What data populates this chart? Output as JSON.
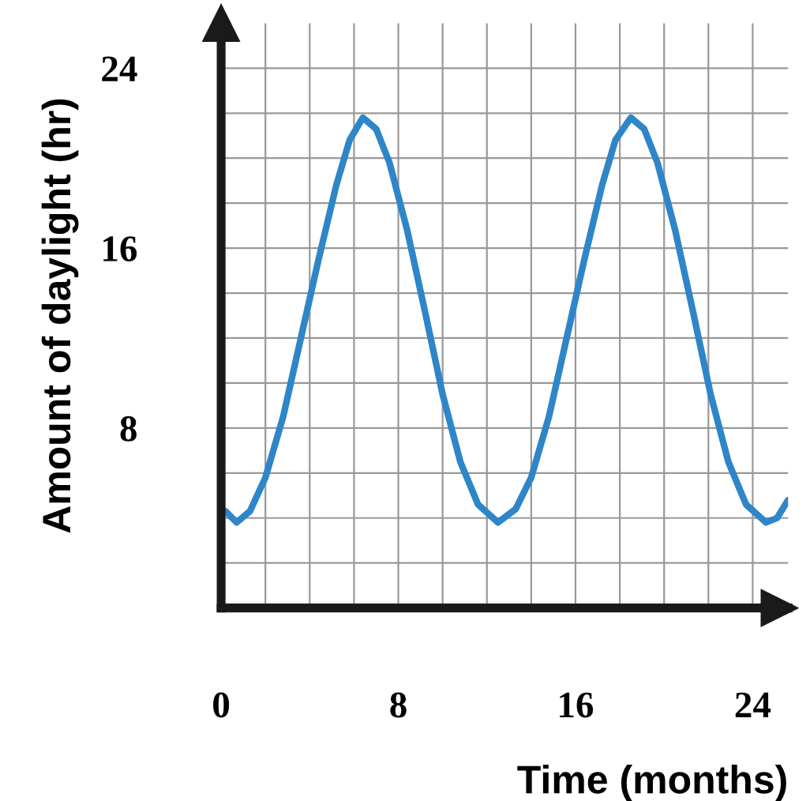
{
  "chart_data": {
    "type": "line",
    "xlabel": "Time (months)",
    "ylabel": "Amount of daylight (hr)",
    "x": [
      0.2,
      0.7,
      1.3,
      2,
      2.8,
      3.6,
      4.4,
      5.2,
      5.8,
      6.4,
      7,
      7.6,
      8.4,
      9.2,
      10,
      10.8,
      11.6,
      12.5,
      13.3,
      14,
      14.8,
      15.6,
      16.4,
      17.2,
      17.8,
      18.5,
      19.1,
      19.7,
      20.5,
      21.3,
      22.1,
      22.9,
      23.7,
      24.6,
      25.1,
      25.6
    ],
    "series": [
      {
        "color": "#2e86c8",
        "values": [
          4.3,
          3.8,
          4.3,
          5.8,
          8.5,
          12,
          15.5,
          18.8,
          20.8,
          21.8,
          21.3,
          19.8,
          16.8,
          13.2,
          9.5,
          6.5,
          4.6,
          3.8,
          4.4,
          5.8,
          8.5,
          12,
          15.5,
          18.8,
          20.8,
          21.8,
          21.3,
          19.8,
          16.8,
          13.2,
          9.5,
          6.5,
          4.6,
          3.8,
          4.0,
          4.8
        ]
      }
    ],
    "xlim": [
      0,
      25.6
    ],
    "ylim": [
      0,
      26
    ],
    "xticks": [
      0,
      {
        "value": 2,
        "label": null
      },
      {
        "value": 4,
        "label": null
      },
      {
        "value": 6,
        "label": null
      },
      8,
      {
        "value": 10,
        "label": null
      },
      {
        "value": 12,
        "label": null
      },
      {
        "value": 14,
        "label": null
      },
      16,
      {
        "value": 18,
        "label": null
      },
      {
        "value": 20,
        "label": null
      },
      {
        "value": 22,
        "label": null
      },
      24
    ],
    "yticks": [
      {
        "value": 2,
        "label": null
      },
      {
        "value": 4,
        "label": null
      },
      {
        "value": 6,
        "label": null
      },
      8,
      {
        "value": 10,
        "label": null
      },
      {
        "value": 12,
        "label": null
      },
      {
        "value": 14,
        "label": null
      },
      16,
      {
        "value": 18,
        "label": null
      },
      {
        "value": 20,
        "label": null
      },
      {
        "value": 22,
        "label": null
      },
      24
    ],
    "grid": true,
    "marker": "none",
    "line_style": "solid",
    "legend": false
  }
}
